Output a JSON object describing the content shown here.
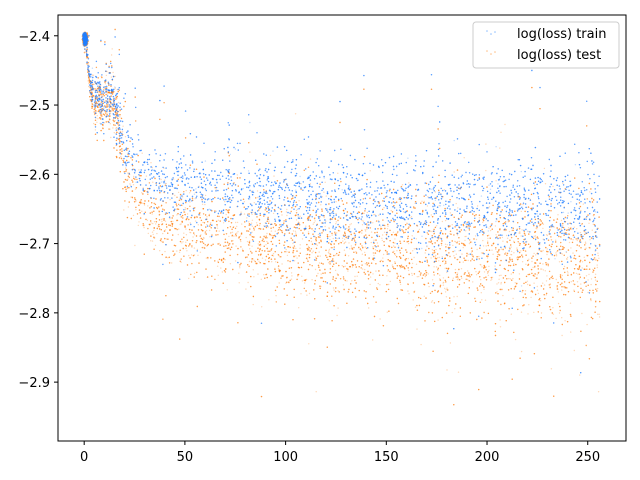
{
  "chart_data": {
    "type": "scatter",
    "title": "",
    "xlabel": "",
    "ylabel": "",
    "xlim": [
      -13,
      269
    ],
    "ylim": [
      -2.985,
      -2.37
    ],
    "x_ticks": [
      0,
      50,
      100,
      150,
      200,
      250
    ],
    "x_tick_labels": [
      "0",
      "50",
      "100",
      "150",
      "200",
      "250"
    ],
    "y_ticks": [
      -2.4,
      -2.5,
      -2.6,
      -2.7,
      -2.8,
      -2.9
    ],
    "y_tick_labels": [
      "−2.4",
      "−2.5",
      "−2.6",
      "−2.7",
      "−2.8",
      "−2.9"
    ],
    "grid": false,
    "legend_placement": "top-right",
    "series": [
      {
        "name": "log(loss) train",
        "color": "#1f7fff",
        "x_range": [
          0,
          256
        ],
        "trend": [
          [
            0,
            -2.405
          ],
          [
            1,
            -2.41
          ],
          [
            3,
            -2.47
          ],
          [
            6,
            -2.485
          ],
          [
            10,
            -2.495
          ],
          [
            14,
            -2.49
          ],
          [
            17,
            -2.51
          ],
          [
            20,
            -2.56
          ],
          [
            25,
            -2.59
          ],
          [
            35,
            -2.605
          ],
          [
            50,
            -2.615
          ],
          [
            75,
            -2.625
          ],
          [
            100,
            -2.635
          ],
          [
            150,
            -2.645
          ],
          [
            200,
            -2.65
          ],
          [
            256,
            -2.655
          ]
        ],
        "spread": [
          [
            0,
            0.01
          ],
          [
            5,
            0.03
          ],
          [
            20,
            0.04
          ],
          [
            50,
            0.05
          ],
          [
            150,
            0.06
          ],
          [
            256,
            0.07
          ]
        ]
      },
      {
        "name": "log(loss) test",
        "color": "#ff7f0e",
        "x_range": [
          0,
          256
        ],
        "trend": [
          [
            0,
            -2.405
          ],
          [
            1,
            -2.41
          ],
          [
            3,
            -2.48
          ],
          [
            6,
            -2.495
          ],
          [
            10,
            -2.5
          ],
          [
            14,
            -2.495
          ],
          [
            17,
            -2.52
          ],
          [
            20,
            -2.59
          ],
          [
            25,
            -2.63
          ],
          [
            35,
            -2.655
          ],
          [
            50,
            -2.675
          ],
          [
            75,
            -2.69
          ],
          [
            100,
            -2.7
          ],
          [
            150,
            -2.71
          ],
          [
            200,
            -2.72
          ],
          [
            256,
            -2.725
          ]
        ],
        "spread": [
          [
            0,
            0.01
          ],
          [
            5,
            0.03
          ],
          [
            20,
            0.05
          ],
          [
            50,
            0.06
          ],
          [
            150,
            0.075
          ],
          [
            256,
            0.085
          ]
        ]
      }
    ]
  }
}
